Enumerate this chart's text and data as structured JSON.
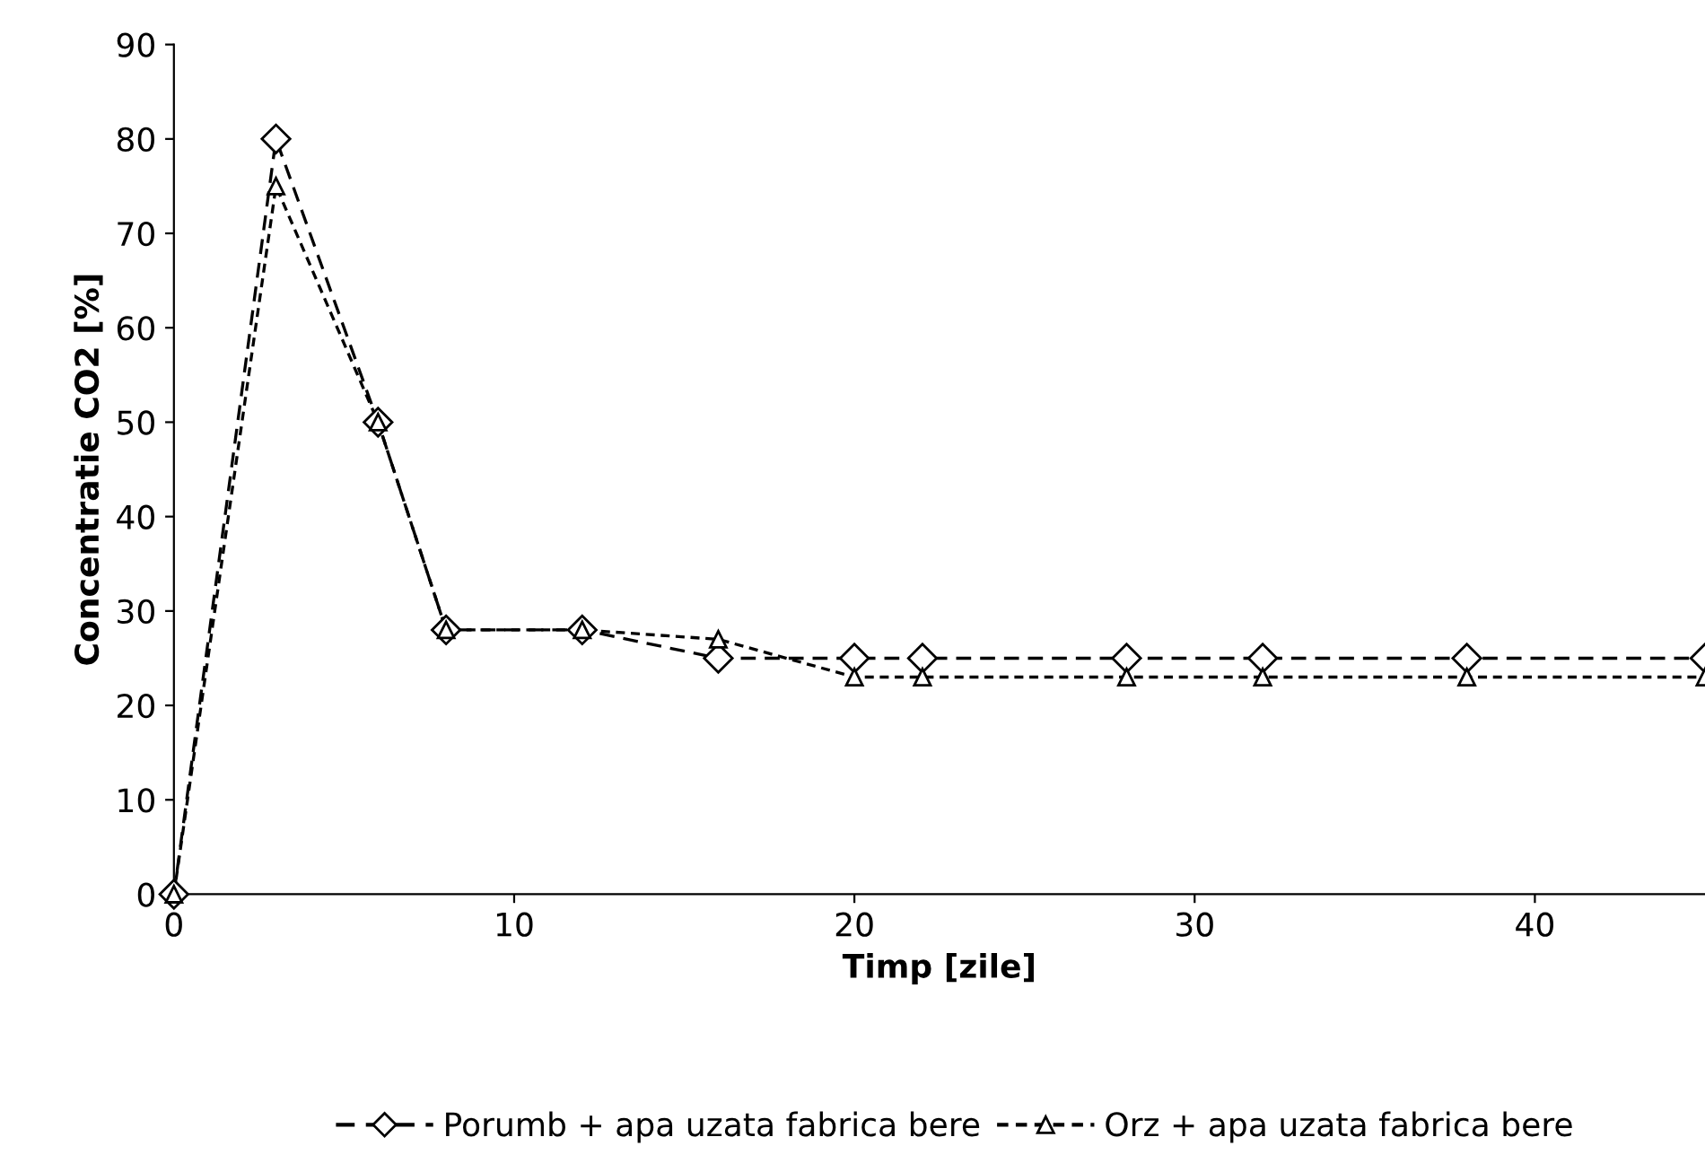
{
  "chart_data": {
    "type": "line",
    "xlabel": "Timp [zile]",
    "ylabel": "Concentratie CO2 [%]",
    "xlim": [
      0,
      45
    ],
    "xticks": [
      0,
      10,
      20,
      30,
      40
    ],
    "ylim": [
      0,
      90
    ],
    "yticks": [
      0,
      10,
      20,
      30,
      40,
      50,
      60,
      70,
      80,
      90
    ],
    "grid": false,
    "legend": "bottom",
    "series": [
      {
        "name": "Porumb + apa uzata fabrica bere",
        "color": "#000000",
        "marker": "diamond",
        "line_style": "dashed",
        "x": [
          0,
          3,
          6,
          8,
          12,
          16,
          20,
          22,
          28,
          32,
          38,
          45
        ],
        "values": [
          0,
          80,
          50,
          28,
          28,
          25,
          25,
          25,
          25,
          25,
          25,
          25
        ]
      },
      {
        "name": "Orz + apa uzata fabrica bere",
        "color": "#000000",
        "marker": "triangle",
        "line_style": "dotted",
        "x": [
          0,
          3,
          6,
          8,
          12,
          16,
          20,
          22,
          28,
          32,
          38,
          45
        ],
        "values": [
          0,
          75,
          50,
          28,
          28,
          27,
          23,
          23,
          23,
          23,
          23,
          23
        ]
      }
    ]
  }
}
